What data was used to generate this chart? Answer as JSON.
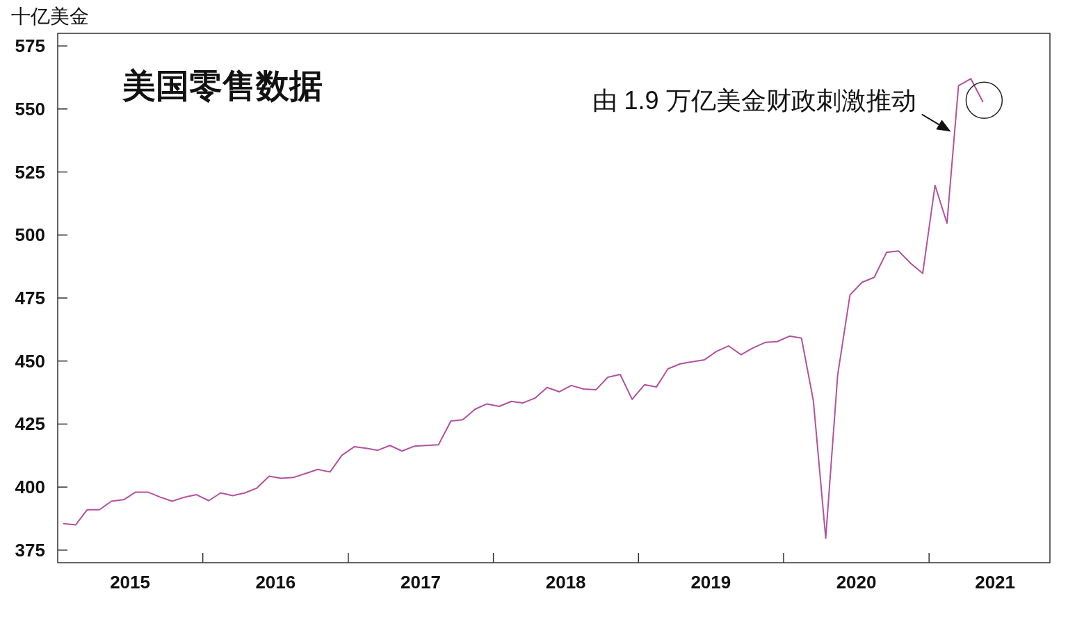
{
  "chart_data": {
    "type": "line",
    "title": "美国零售数据",
    "ylabel": "十亿美金",
    "x": [
      "2015-01-16",
      "2015-02-15",
      "2015-03-16",
      "2015-04-16",
      "2015-05-16",
      "2015-06-16",
      "2015-07-16",
      "2015-08-16",
      "2015-09-16",
      "2015-10-16",
      "2015-11-16",
      "2015-12-16",
      "2016-01-16",
      "2016-02-15",
      "2016-03-16",
      "2016-04-16",
      "2016-05-16",
      "2016-06-16",
      "2016-07-16",
      "2016-08-16",
      "2016-09-16",
      "2016-10-16",
      "2016-11-16",
      "2016-12-16",
      "2017-01-16",
      "2017-02-15",
      "2017-03-16",
      "2017-04-16",
      "2017-05-16",
      "2017-06-16",
      "2017-07-16",
      "2017-08-16",
      "2017-09-16",
      "2017-10-16",
      "2017-11-16",
      "2017-12-16",
      "2018-01-16",
      "2018-02-15",
      "2018-03-16",
      "2018-04-16",
      "2018-05-16",
      "2018-06-16",
      "2018-07-16",
      "2018-08-16",
      "2018-09-16",
      "2018-10-16",
      "2018-11-16",
      "2018-12-16",
      "2019-01-16",
      "2019-02-15",
      "2019-03-16",
      "2019-04-16",
      "2019-05-16",
      "2019-06-16",
      "2019-07-16",
      "2019-08-16",
      "2019-09-16",
      "2019-10-16",
      "2019-11-16",
      "2019-12-16",
      "2020-01-16",
      "2020-02-15",
      "2020-03-16",
      "2020-04-16",
      "2020-05-16",
      "2020-06-16",
      "2020-07-16",
      "2020-08-16",
      "2020-09-16",
      "2020-10-16",
      "2020-11-16",
      "2020-12-16",
      "2021-01-16",
      "2021-02-15",
      "2021-03-16",
      "2021-04-16",
      "2021-05-16"
    ],
    "series": [
      {
        "color": "#b4519f",
        "values": [
          385.5,
          385,
          391,
          391,
          394.4,
          395,
          398,
          398,
          396,
          394.4,
          396,
          397,
          394.6,
          397.7,
          396.6,
          397.7,
          399.6,
          404.3,
          403.5,
          403.8,
          405.4,
          407,
          406,
          412.6,
          416,
          415.4,
          414.6,
          416.5,
          414.3,
          416.2,
          416.5,
          416.8,
          426.2,
          426.7,
          430.9,
          433,
          432,
          434,
          433.4,
          435.3,
          439.5,
          437.8,
          440.3,
          438.9,
          438.6,
          443.6,
          444.7,
          434.8,
          440.6,
          439.7,
          446.9,
          448.9,
          449.7,
          450.5,
          453.8,
          456,
          452.5,
          455.2,
          457.4,
          457.7,
          459.9,
          459.1,
          434.2,
          379.7,
          444.4,
          476.2,
          481.2,
          483.2,
          493.1,
          493.7,
          488.7,
          484.8,
          519.7,
          504.7,
          559.2,
          562,
          552.9
        ]
      }
    ],
    "xlim": [
      "2015-01-01",
      "2021-11-01"
    ],
    "xticks": [
      {
        "value": "2015-07-02",
        "label": "2015"
      },
      {
        "value": "2016-01-01",
        "label": null
      },
      {
        "value": "2016-07-02",
        "label": "2016"
      },
      {
        "value": "2017-01-01",
        "label": null
      },
      {
        "value": "2017-07-02",
        "label": "2017"
      },
      {
        "value": "2018-01-01",
        "label": null
      },
      {
        "value": "2018-07-02",
        "label": "2018"
      },
      {
        "value": "2019-01-01",
        "label": null
      },
      {
        "value": "2019-07-02",
        "label": "2019"
      },
      {
        "value": "2020-01-01",
        "label": null
      },
      {
        "value": "2020-07-02",
        "label": "2020"
      },
      {
        "value": "2021-01-01",
        "label": null
      },
      {
        "value": "2021-06-16",
        "label": "2021"
      }
    ],
    "ylim": [
      370,
      580
    ],
    "yticks": [
      375,
      400,
      425,
      450,
      475,
      500,
      525,
      550,
      575
    ],
    "grid": false,
    "marker": "none",
    "line_style": "solid",
    "annotations": [
      {
        "text": "由 1.9 万亿美金财政刺激推动",
        "x": "2021-02-25",
        "y": 541
      }
    ]
  }
}
